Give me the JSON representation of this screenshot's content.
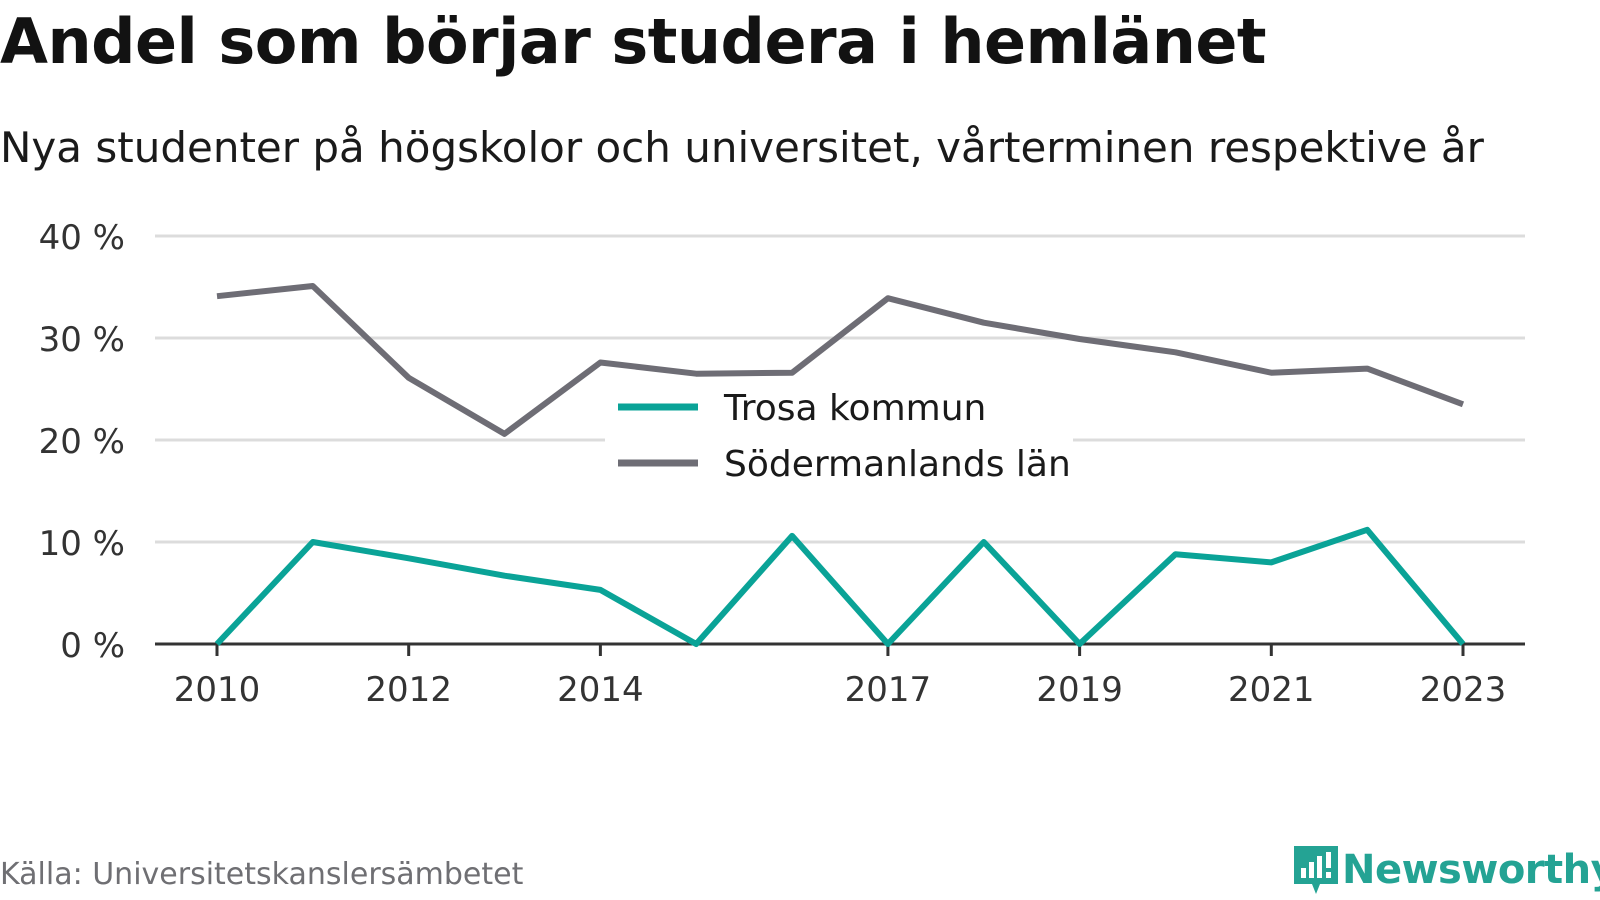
{
  "title": "Andel som börjar studera i hemlänet",
  "subtitle": "Nya studenter på högskolor och universitet, vårterminen respektive år",
  "source": "Källa: Universitetskanslersämbetet",
  "brand": {
    "name": "Newsworthy",
    "icon": "newsworthy-logo-icon",
    "color": "#24a394"
  },
  "colors": {
    "trosa": "#0aa397",
    "sodermanland": "#6e6d75",
    "grid": "#dcdcdc",
    "axis": "#333333"
  },
  "chart_data": {
    "type": "line",
    "title": "Andel som börjar studera i hemlänet",
    "subtitle": "Nya studenter på högskolor och universitet, vårterminen respektive år",
    "x": [
      2010,
      2011,
      2012,
      2013,
      2014,
      2015,
      2016,
      2017,
      2018,
      2019,
      2020,
      2021,
      2022,
      2023
    ],
    "x_tick_labels": [
      "2010",
      "2012",
      "2014",
      "2017",
      "2019",
      "2021",
      "2023"
    ],
    "y_tick_labels": [
      "0 %",
      "10 %",
      "20 %",
      "30 %",
      "40 %"
    ],
    "y_ticks": [
      0,
      10,
      20,
      30,
      40
    ],
    "ylim": [
      0,
      40
    ],
    "y_unit": "%",
    "grid": true,
    "legend_position": "center",
    "series": [
      {
        "name": "Trosa kommun",
        "color": "#0aa397",
        "values": [
          0,
          10,
          8.4,
          6.7,
          5.3,
          0,
          10.6,
          0,
          10,
          0,
          8.8,
          8,
          11.2,
          0
        ]
      },
      {
        "name": "Södermanlands län",
        "color": "#6e6d75",
        "values": [
          34.1,
          35.1,
          26.1,
          20.6,
          27.6,
          26.5,
          26.6,
          33.9,
          31.5,
          29.9,
          28.6,
          26.6,
          27,
          23.5
        ]
      }
    ]
  }
}
